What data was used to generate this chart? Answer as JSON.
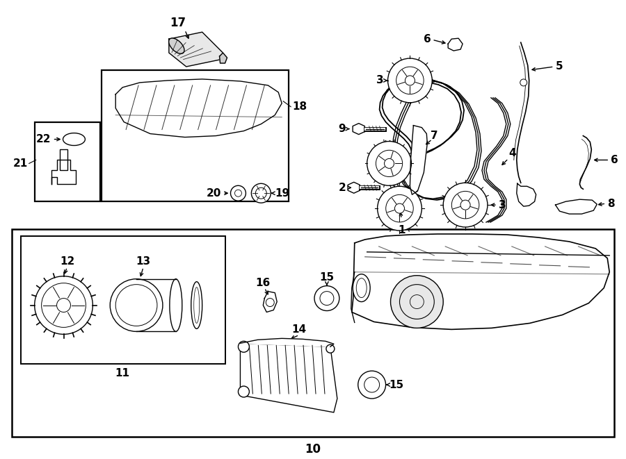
{
  "bg": "#ffffff",
  "lc": "#000000",
  "lw": 1.0,
  "fw": 9.0,
  "fh": 6.61
}
